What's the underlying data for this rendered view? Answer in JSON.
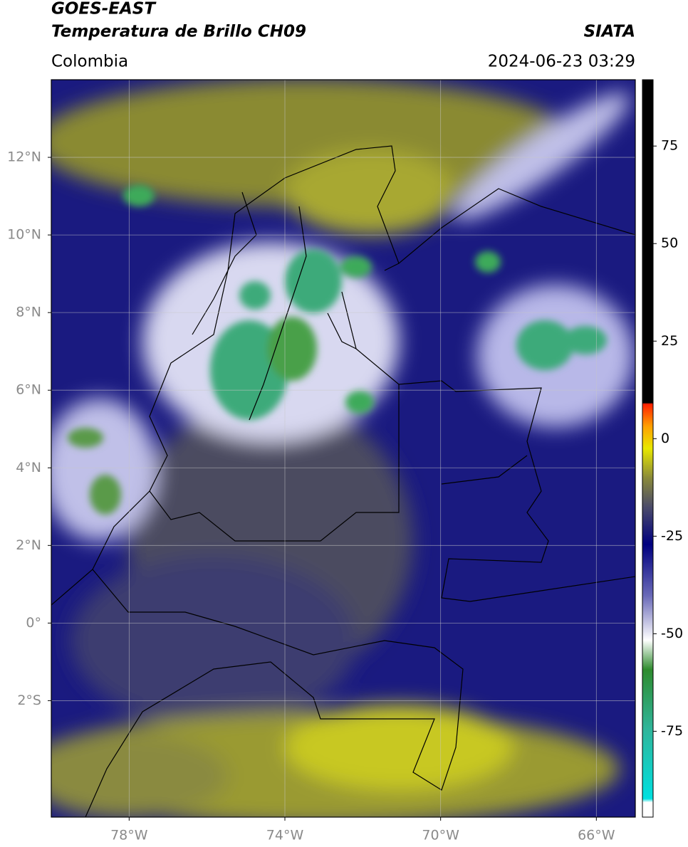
{
  "header": {
    "satellite": "GOES-EAST",
    "product": "Temperatura de Brillo CH09",
    "agency": "SIATA",
    "region": "Colombia",
    "datetime": "2024-06-23 03:29"
  },
  "map": {
    "lonlim": [
      -80,
      -65
    ],
    "latlim": [
      -5,
      14
    ],
    "lonticks": [
      {
        "value": -78,
        "label": "78°W"
      },
      {
        "value": -74,
        "label": "74°W"
      },
      {
        "value": -70,
        "label": "70°W"
      },
      {
        "value": -66,
        "label": "66°W"
      }
    ],
    "latticks": [
      {
        "value": 12,
        "label": "12°N"
      },
      {
        "value": 10,
        "label": "10°N"
      },
      {
        "value": 8,
        "label": "8°N"
      },
      {
        "value": 6,
        "label": "6°N"
      },
      {
        "value": 4,
        "label": "4°N"
      },
      {
        "value": 2,
        "label": "2°N"
      },
      {
        "value": 0,
        "label": "0°"
      },
      {
        "value": -2,
        "label": "2°S"
      }
    ],
    "grid": true
  },
  "colorbar": {
    "lim": [
      -97,
      92
    ],
    "ticks": [
      75,
      50,
      25,
      0,
      -25,
      -50,
      -75
    ]
  }
}
